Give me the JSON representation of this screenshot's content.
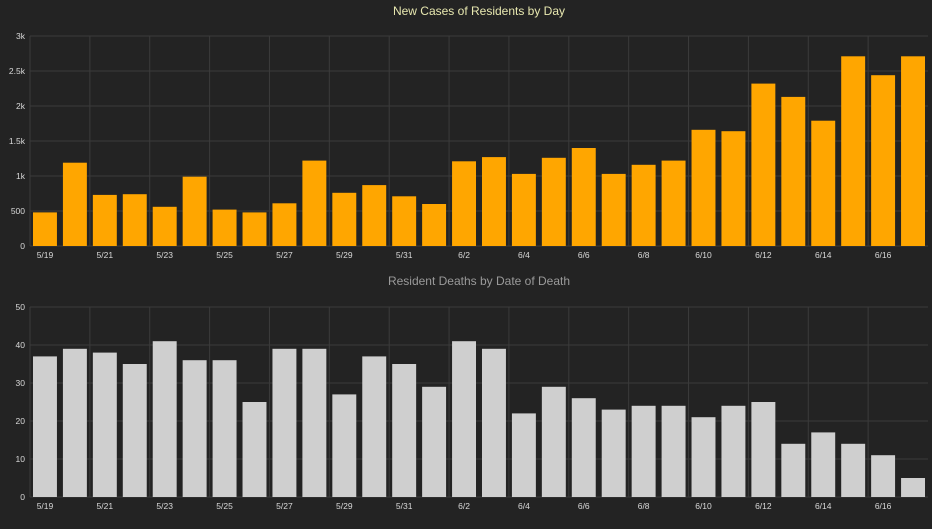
{
  "colors": {
    "background": "#232323",
    "grid": "#3b3b3b",
    "axis_text": "#d9d9d9",
    "cases_bar": "#ffa600",
    "deaths_bar": "#cfcfcf",
    "cases_title": "#e8e8b0",
    "deaths_title": "#9a9a9a"
  },
  "chart_data": [
    {
      "type": "bar",
      "title": "New Cases of Residents by Day",
      "xlabel": "",
      "ylabel": "",
      "ylim": [
        0,
        3000
      ],
      "yticks": [
        0,
        500,
        1000,
        1500,
        2000,
        2500,
        3000
      ],
      "ytick_labels": [
        "0",
        "500",
        "1k",
        "1.5k",
        "2k",
        "2.5k",
        "3k"
      ],
      "grid": true,
      "categories": [
        "5/19",
        "5/20",
        "5/21",
        "5/22",
        "5/23",
        "5/24",
        "5/25",
        "5/26",
        "5/27",
        "5/28",
        "5/29",
        "5/30",
        "5/31",
        "6/1",
        "6/2",
        "6/3",
        "6/4",
        "6/5",
        "6/6",
        "6/7",
        "6/8",
        "6/9",
        "6/10",
        "6/11",
        "6/12",
        "6/13",
        "6/14",
        "6/15",
        "6/16",
        "6/17"
      ],
      "xtick_labels": [
        "5/19",
        "5/21",
        "5/23",
        "5/25",
        "5/27",
        "5/29",
        "5/31",
        "6/2",
        "6/4",
        "6/6",
        "6/8",
        "6/10",
        "6/12",
        "6/14",
        "6/16"
      ],
      "values": [
        480,
        1190,
        730,
        740,
        560,
        990,
        520,
        480,
        610,
        1220,
        760,
        870,
        710,
        600,
        1210,
        1270,
        1030,
        1260,
        1400,
        1030,
        1160,
        1220,
        1660,
        1640,
        2320,
        2130,
        1790,
        2710,
        2440,
        2710
      ]
    },
    {
      "type": "bar",
      "title": "Resident Deaths by Date of Death",
      "xlabel": "",
      "ylabel": "",
      "ylim": [
        0,
        50
      ],
      "yticks": [
        0,
        10,
        20,
        30,
        40,
        50
      ],
      "ytick_labels": [
        "0",
        "10",
        "20",
        "30",
        "40",
        "50"
      ],
      "grid": true,
      "categories": [
        "5/19",
        "5/20",
        "5/21",
        "5/22",
        "5/23",
        "5/24",
        "5/25",
        "5/26",
        "5/27",
        "5/28",
        "5/29",
        "5/30",
        "5/31",
        "6/1",
        "6/2",
        "6/3",
        "6/4",
        "6/5",
        "6/6",
        "6/7",
        "6/8",
        "6/9",
        "6/10",
        "6/11",
        "6/12",
        "6/13",
        "6/14",
        "6/15",
        "6/16",
        "6/17"
      ],
      "xtick_labels": [
        "5/19",
        "5/21",
        "5/23",
        "5/25",
        "5/27",
        "5/29",
        "5/31",
        "6/2",
        "6/4",
        "6/6",
        "6/8",
        "6/10",
        "6/12",
        "6/14",
        "6/16"
      ],
      "values": [
        37,
        39,
        38,
        35,
        41,
        36,
        36,
        25,
        39,
        39,
        27,
        37,
        35,
        29,
        41,
        39,
        22,
        29,
        26,
        23,
        24,
        24,
        21,
        24,
        25,
        14,
        17,
        14,
        11,
        5
      ]
    }
  ]
}
